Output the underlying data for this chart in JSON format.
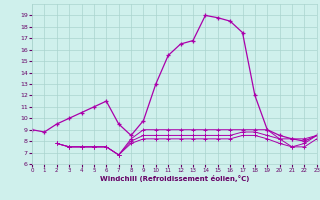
{
  "xlabel": "Windchill (Refroidissement éolien,°C)",
  "x": [
    0,
    1,
    2,
    3,
    4,
    5,
    6,
    7,
    8,
    9,
    10,
    11,
    12,
    13,
    14,
    15,
    16,
    17,
    18,
    19,
    20,
    21,
    22,
    23
  ],
  "main_line": [
    9.0,
    8.8,
    9.5,
    10.0,
    10.5,
    11.0,
    11.5,
    9.5,
    8.5,
    9.8,
    13.0,
    15.5,
    16.5,
    16.8,
    19.0,
    18.8,
    18.5,
    17.5,
    12.0,
    9.0,
    8.5,
    8.2,
    8.0,
    8.5
  ],
  "flat_line1": [
    null,
    null,
    7.8,
    7.5,
    7.5,
    7.5,
    7.5,
    6.8,
    8.0,
    8.5,
    8.5,
    8.5,
    8.5,
    8.5,
    8.5,
    8.5,
    8.5,
    8.8,
    8.8,
    8.5,
    8.2,
    7.5,
    7.8,
    8.5
  ],
  "flat_line2": [
    null,
    null,
    7.8,
    7.5,
    7.5,
    7.5,
    7.5,
    6.8,
    7.8,
    8.2,
    8.2,
    8.2,
    8.2,
    8.2,
    8.2,
    8.2,
    8.2,
    8.5,
    8.5,
    8.2,
    7.8,
    7.5,
    7.5,
    8.2
  ],
  "flat_line3": [
    null,
    null,
    7.8,
    7.5,
    7.5,
    7.5,
    7.5,
    6.8,
    8.2,
    9.0,
    9.0,
    9.0,
    9.0,
    9.0,
    9.0,
    9.0,
    9.0,
    9.0,
    9.0,
    9.0,
    8.2,
    8.2,
    8.2,
    8.5
  ],
  "bg_color": "#cff0ec",
  "grid_color": "#aad4ce",
  "line_color": "#aa00aa",
  "ylim": [
    6,
    20
  ],
  "xlim": [
    0,
    23
  ],
  "yticks": [
    6,
    7,
    8,
    9,
    10,
    11,
    12,
    13,
    14,
    15,
    16,
    17,
    18,
    19
  ],
  "xticks": [
    0,
    1,
    2,
    3,
    4,
    5,
    6,
    7,
    8,
    9,
    10,
    11,
    12,
    13,
    14,
    15,
    16,
    17,
    18,
    19,
    20,
    21,
    22,
    23
  ]
}
